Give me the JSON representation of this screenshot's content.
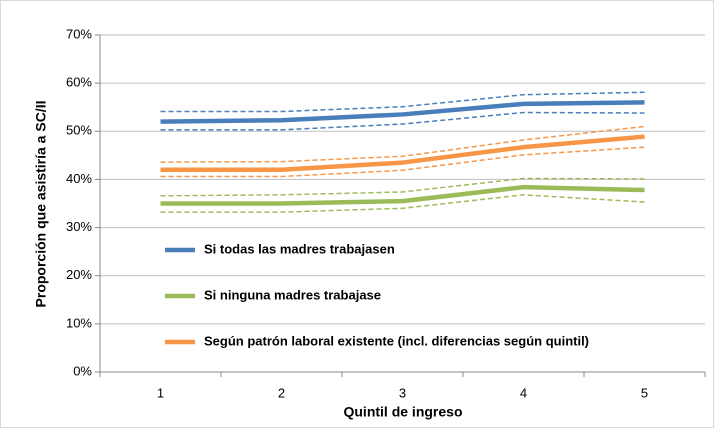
{
  "chart_data": {
    "type": "line",
    "y_label": "Proporción que asistiría a SC/II",
    "x_label": "Quintil de ingreso",
    "categories": [
      "1",
      "2",
      "3",
      "4",
      "5"
    ],
    "series": [
      {
        "name": "Si todas las madres trabajasen",
        "color": "#4a7ebb",
        "values": [
          52.0,
          52.3,
          53.5,
          55.7,
          56.0
        ],
        "upper": [
          54.1,
          54.1,
          55.1,
          57.6,
          58.1
        ],
        "lower": [
          50.3,
          50.3,
          51.5,
          53.9,
          53.8
        ]
      },
      {
        "name": "Si ninguna madres trabajase",
        "color": "#9bbb59",
        "values": [
          35.0,
          35.0,
          35.5,
          38.4,
          37.8
        ],
        "upper": [
          36.6,
          36.8,
          37.4,
          40.2,
          40.1
        ],
        "lower": [
          33.2,
          33.2,
          34.0,
          36.8,
          35.3
        ]
      },
      {
        "name": "Según patrón laboral existente (incl. diferencias según quintil)",
        "color": "#f79646",
        "values": [
          42.0,
          42.0,
          43.5,
          46.7,
          48.9
        ],
        "upper": [
          43.6,
          43.7,
          44.8,
          48.2,
          51.0
        ],
        "lower": [
          40.6,
          40.6,
          41.9,
          45.1,
          46.7
        ]
      }
    ],
    "ylim": [
      0,
      70
    ],
    "yticks": [
      {
        "value": 0,
        "label": "0%"
      },
      {
        "value": 10,
        "label": "10%"
      },
      {
        "value": 20,
        "label": "20%"
      },
      {
        "value": 30,
        "label": "30%"
      },
      {
        "value": 40,
        "label": "40%"
      },
      {
        "value": 50,
        "label": "50%"
      },
      {
        "value": 60,
        "label": "60%"
      },
      {
        "value": 70,
        "label": "70%"
      }
    ],
    "grid": true,
    "legend": "left"
  }
}
